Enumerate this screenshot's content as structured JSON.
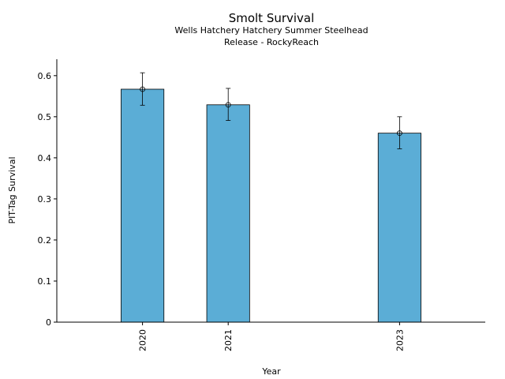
{
  "chart_data": {
    "type": "bar",
    "title": "Smolt Survival",
    "subtitle_lines": [
      "Wells Hatchery Hatchery Summer Steelhead",
      "Release - RockyReach"
    ],
    "xlabel": "Year",
    "ylabel": "PIT-Tag Survival",
    "x_axis": [
      2019,
      2024.0
    ],
    "ylim": [
      0,
      0.64
    ],
    "y_ticks": [
      0,
      0.1,
      0.2,
      0.3,
      0.4,
      0.5,
      0.6
    ],
    "y_tick_labels": [
      "0",
      "0.1",
      "0.2",
      "0.3",
      "0.4",
      "0.5",
      "0.6"
    ],
    "categories": [
      "2020",
      "2021",
      "2023"
    ],
    "values": [
      0.567,
      0.529,
      0.46
    ],
    "error_low": [
      0.528,
      0.491,
      0.422
    ],
    "error_high": [
      0.607,
      0.569,
      0.5
    ],
    "bar_color": "#5badd6",
    "grid": false,
    "legend": "none"
  }
}
